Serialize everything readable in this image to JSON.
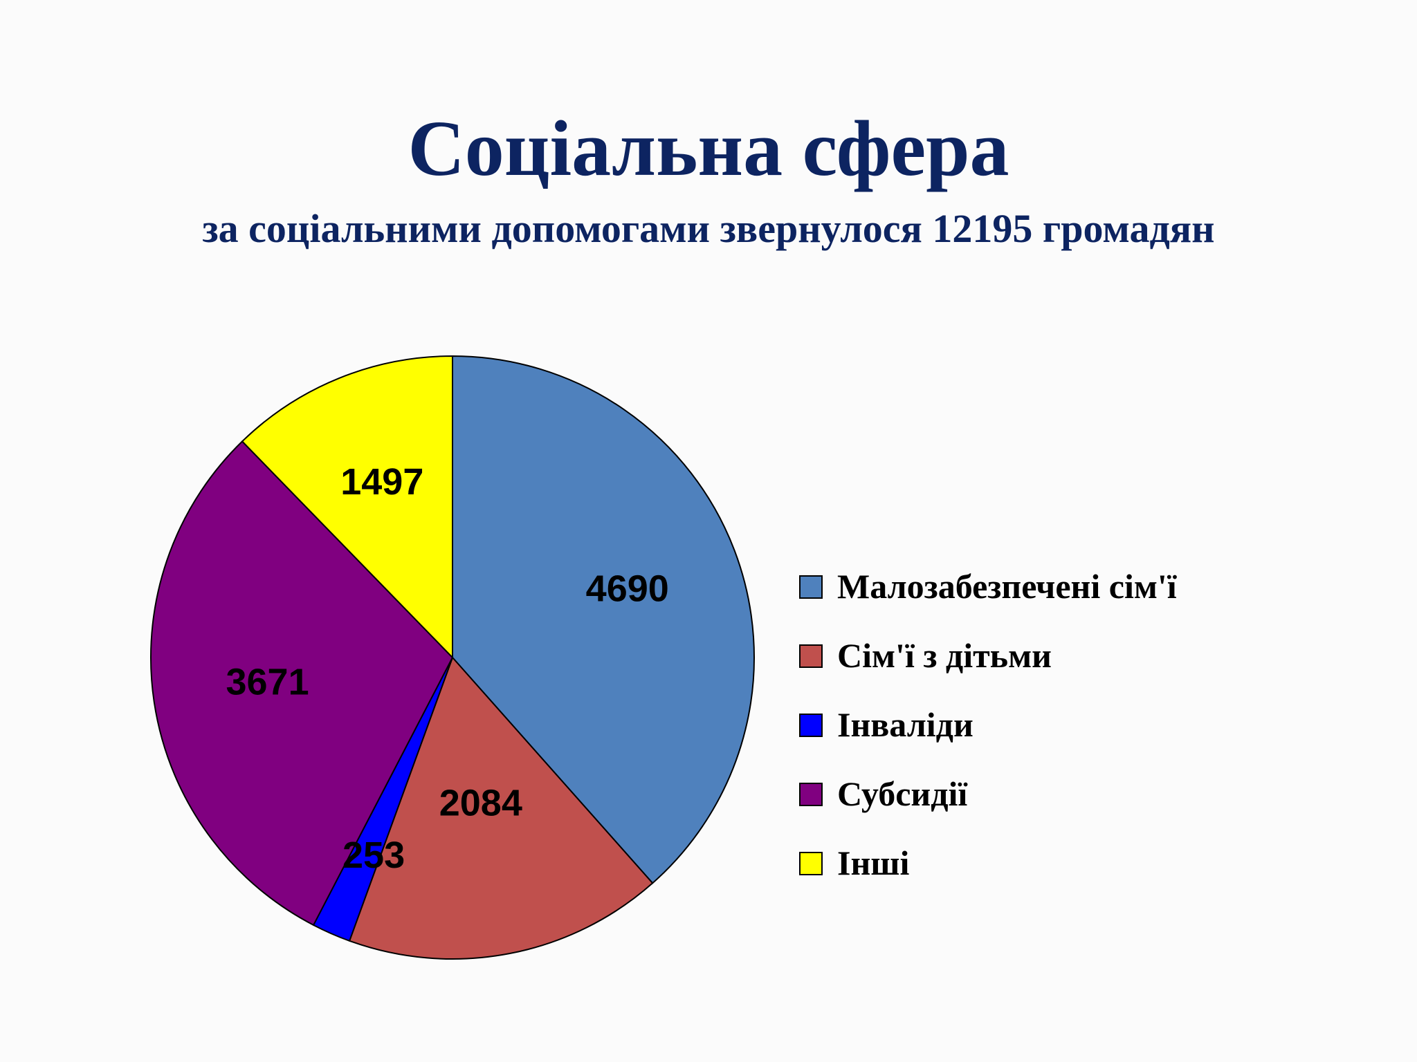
{
  "slide": {
    "title": "Соціальна сфера",
    "subtitle": "за соціальними допомогами звернулося 12195 громадян"
  },
  "chart_data": {
    "type": "pie",
    "title": "",
    "start_angle_deg": 0,
    "direction": "clockwise",
    "legend_position": "right",
    "slices": [
      {
        "name": "Малозабезпечені сім'ї",
        "value": 4690,
        "label": "4690",
        "color": "#4f81bd"
      },
      {
        "name": "Сім'ї з дітьми",
        "value": 2084,
        "label": "2084",
        "color": "#c0504d"
      },
      {
        "name": "Інваліди",
        "value": 253,
        "label": "253",
        "color": "#0000ff"
      },
      {
        "name": "Субсидії",
        "value": 3671,
        "label": "3671",
        "color": "#800080"
      },
      {
        "name": "Інші",
        "value": 1497,
        "label": "1497",
        "color": "#ffff00"
      }
    ]
  }
}
